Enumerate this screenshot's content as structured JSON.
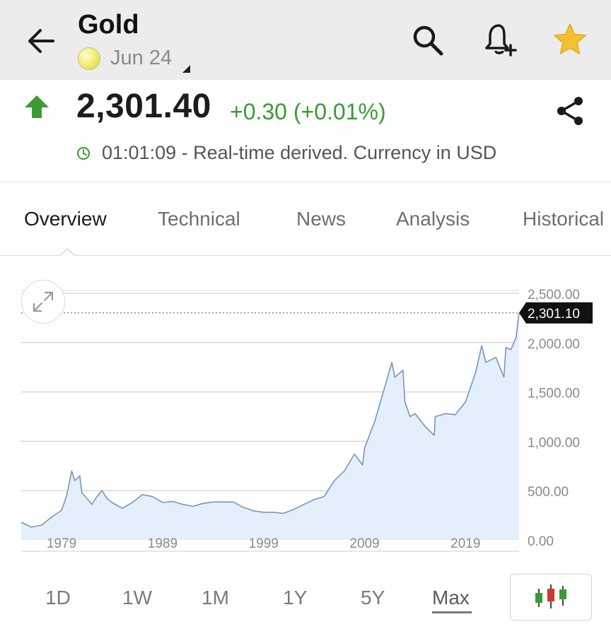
{
  "header": {
    "title": "Gold",
    "contract": "Jun 24",
    "icons": [
      "back-arrow-icon",
      "search-icon",
      "add-alert-icon",
      "watchlist-star-icon"
    ],
    "star_color": "#f5c02e"
  },
  "quote": {
    "price": "2,301.40",
    "change": "+0.30 (+0.01%)",
    "direction": "up",
    "change_color": "#3b9a35",
    "time_note": "01:01:09 - Real-time derived. Currency in USD"
  },
  "tabs": [
    {
      "label": "Overview",
      "active": true
    },
    {
      "label": "Technical",
      "active": false
    },
    {
      "label": "News",
      "active": false
    },
    {
      "label": "Analysis",
      "active": false
    },
    {
      "label": "Historical",
      "active": false
    }
  ],
  "chart_data": {
    "type": "area",
    "x_ticks": [
      "1979",
      "1989",
      "1999",
      "2009",
      "2019"
    ],
    "y_ticks": [
      "0.00",
      "500.00",
      "1,000.00",
      "1,500.00",
      "2,000.00",
      "2,500.00"
    ],
    "ylim": [
      0,
      2500
    ],
    "xlim": [
      1975,
      2024.3
    ],
    "last_value_label": "2,301.10",
    "last_value": 2301.1,
    "line_color": "#7796bd",
    "fill_color": "#e3effb",
    "grid": true,
    "series": [
      {
        "x": [
          1975,
          1976,
          1977,
          1978,
          1979,
          1979.5,
          1980,
          1980.3,
          1980.8,
          1981,
          1981.5,
          1982,
          1982.5,
          1983,
          1983.5,
          1984,
          1985,
          1986,
          1987,
          1988,
          1989,
          1990,
          1991,
          1992,
          1993,
          1994,
          1995,
          1996,
          1997,
          1998,
          1999,
          2000,
          2001,
          2002,
          2003,
          2004,
          2005,
          2006,
          2007,
          2008,
          2008.8,
          2009,
          2010,
          2011,
          2011.7,
          2012,
          2012.8,
          2013,
          2013.5,
          2014,
          2015,
          2015.9,
          2016,
          2017,
          2018,
          2019,
          2020,
          2020.6,
          2021,
          2022,
          2022.8,
          2023,
          2023.5,
          2024,
          2024.3
        ],
        "y": [
          180,
          130,
          150,
          230,
          300,
          450,
          700,
          600,
          650,
          480,
          420,
          360,
          440,
          500,
          420,
          380,
          320,
          380,
          460,
          440,
          380,
          390,
          360,
          340,
          370,
          385,
          385,
          385,
          330,
          295,
          280,
          280,
          270,
          310,
          360,
          410,
          440,
          600,
          700,
          870,
          760,
          930,
          1200,
          1550,
          1800,
          1650,
          1720,
          1400,
          1250,
          1280,
          1150,
          1060,
          1250,
          1280,
          1270,
          1400,
          1700,
          1970,
          1800,
          1850,
          1650,
          1950,
          1930,
          2050,
          2301.1
        ]
      }
    ]
  },
  "ranges": [
    {
      "label": "1D",
      "active": false
    },
    {
      "label": "1W",
      "active": false
    },
    {
      "label": "1M",
      "active": false
    },
    {
      "label": "1Y",
      "active": false
    },
    {
      "label": "5Y",
      "active": false
    },
    {
      "label": "Max",
      "active": true
    }
  ],
  "candle_icon": "candlestick-icon",
  "candle_colors": [
    "#3b9a35",
    "#cc3a2d",
    "#3b9a35"
  ]
}
